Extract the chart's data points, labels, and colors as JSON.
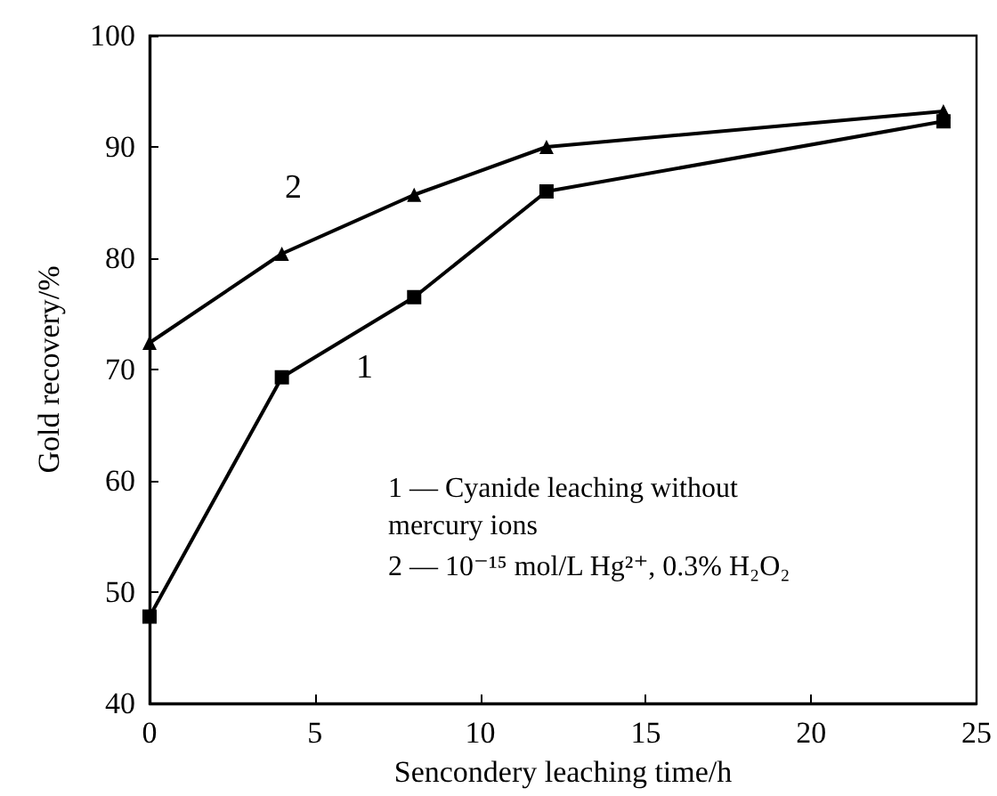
{
  "chart_data": {
    "type": "line",
    "xlabel": "Sencondery leaching time/h",
    "ylabel": "Gold recovery/%",
    "x": [
      0,
      4,
      8,
      12,
      24
    ],
    "series": [
      {
        "color": "#000000",
        "marker": "square",
        "values": [
          47.8,
          69.3,
          76.5,
          86,
          92.3
        ]
      },
      {
        "color": "#000000",
        "marker": "triangle",
        "values": [
          72.4,
          80.4,
          85.7,
          90,
          93.2
        ]
      }
    ],
    "xlim": [
      0,
      25
    ],
    "xticks": [
      0,
      5,
      10,
      15,
      20,
      25
    ],
    "ylim": [
      40,
      100
    ],
    "yticks": [
      40,
      50,
      60,
      70,
      80,
      90,
      100
    ],
    "grid": false,
    "line_style": "solid",
    "annotations": [
      "1",
      "2",
      "1 — Cyanide leaching without mercury ions",
      "2 — 10⁻¹⁵ mol/L Hg²⁺, 0.3% H₂O₂"
    ]
  }
}
